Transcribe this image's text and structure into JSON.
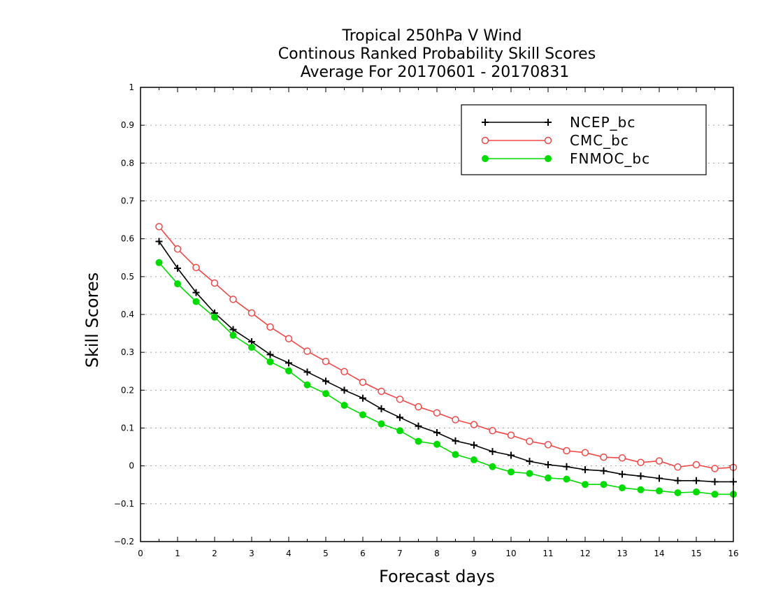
{
  "chart_data": {
    "type": "line",
    "title": [
      "Tropical 250hPa V Wind",
      "Continous Ranked Probability Skill Scores",
      "Average For 20170601 - 20170831"
    ],
    "xlabel": "Forecast days",
    "ylabel": "Skill Scores",
    "xlim": [
      0,
      16
    ],
    "ylim": [
      -0.2,
      1
    ],
    "x_ticks": [
      0,
      1,
      2,
      3,
      4,
      5,
      6,
      7,
      8,
      9,
      10,
      11,
      12,
      13,
      14,
      15,
      16
    ],
    "y_ticks": [
      -0.2,
      -0.1,
      0,
      0.1,
      0.2,
      0.3,
      0.4,
      0.5,
      0.6,
      0.7,
      0.8,
      0.9,
      1
    ],
    "y_tick_labels": [
      "−0.2",
      "−0.1",
      "0",
      "0.1",
      "0.2",
      "0.3",
      "0.4",
      "0.5",
      "0.6",
      "0.7",
      "0.8",
      "0.9",
      "1"
    ],
    "grid": true,
    "legend_position": "top-right",
    "x": [
      0.5,
      1,
      1.5,
      2,
      2.5,
      3,
      3.5,
      4,
      4.5,
      5,
      5.5,
      6,
      6.5,
      7,
      7.5,
      8,
      8.5,
      9,
      9.5,
      10,
      10.5,
      11,
      11.5,
      12,
      12.5,
      13,
      13.5,
      14,
      14.5,
      15,
      15.5,
      16
    ],
    "series": [
      {
        "name": "NCEP_bc",
        "color": "#000000",
        "marker": "plus",
        "values": [
          0.593,
          0.522,
          0.458,
          0.404,
          0.36,
          0.328,
          0.294,
          0.272,
          0.248,
          0.224,
          0.2,
          0.179,
          0.151,
          0.128,
          0.105,
          0.088,
          0.066,
          0.055,
          0.038,
          0.028,
          0.012,
          0.003,
          -0.002,
          -0.01,
          -0.013,
          -0.022,
          -0.027,
          -0.033,
          -0.039,
          -0.039,
          -0.042,
          -0.042
        ]
      },
      {
        "name": "CMC_bc",
        "color": "#f04646",
        "marker": "open-circle",
        "values": [
          0.632,
          0.573,
          0.524,
          0.483,
          0.44,
          0.404,
          0.367,
          0.336,
          0.303,
          0.276,
          0.249,
          0.221,
          0.197,
          0.176,
          0.156,
          0.14,
          0.122,
          0.109,
          0.093,
          0.081,
          0.065,
          0.056,
          0.04,
          0.035,
          0.023,
          0.021,
          0.009,
          0.013,
          -0.003,
          0.003,
          -0.007,
          -0.004
        ]
      },
      {
        "name": "FNMOC_bc",
        "color": "#00dc00",
        "marker": "filled-circle",
        "values": [
          0.537,
          0.481,
          0.434,
          0.393,
          0.345,
          0.313,
          0.275,
          0.251,
          0.214,
          0.191,
          0.16,
          0.135,
          0.111,
          0.093,
          0.065,
          0.057,
          0.03,
          0.016,
          -0.002,
          -0.016,
          -0.02,
          -0.032,
          -0.035,
          -0.049,
          -0.049,
          -0.058,
          -0.063,
          -0.066,
          -0.071,
          -0.069,
          -0.075,
          -0.075
        ]
      }
    ]
  }
}
